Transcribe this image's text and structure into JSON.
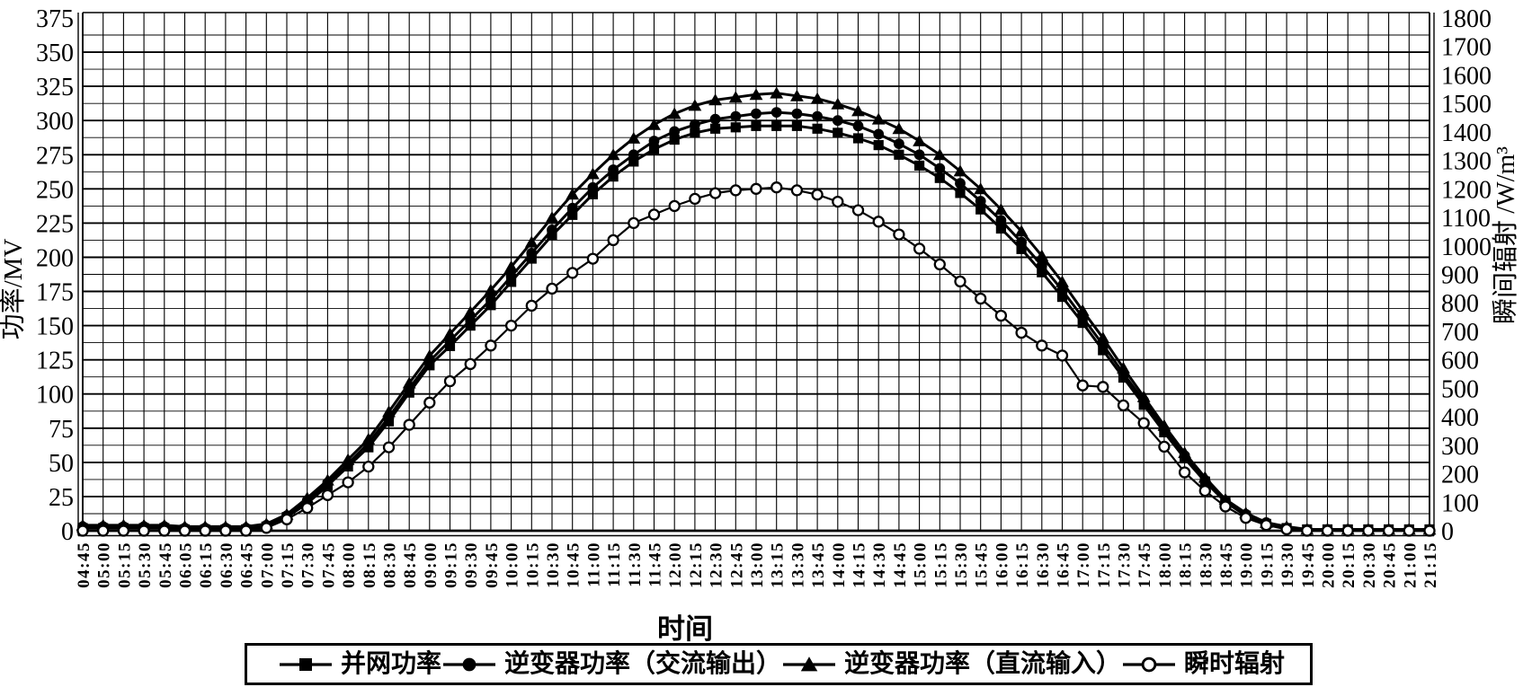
{
  "figure": {
    "background_color": "#ffffff",
    "ink_color": "#000000"
  },
  "chart_data": {
    "type": "line",
    "title": "",
    "legend_position": "bottom-center",
    "grid": {
      "vertical_per_tick": true,
      "horizontal_major_step": 25,
      "horizontal_minor_step": 12.5
    },
    "x_axis": {
      "title": "时间",
      "tick_labels": [
        "04:45",
        "05:00",
        "05:15",
        "05:30",
        "05:45",
        "06:05",
        "06:15",
        "06:30",
        "06:45",
        "07:00",
        "07:15",
        "07:30",
        "07:45",
        "08:00",
        "08:15",
        "08:30",
        "08:45",
        "09:00",
        "09:15",
        "09:30",
        "09:45",
        "10:00",
        "10:15",
        "10:30",
        "10:45",
        "11:00",
        "11:15",
        "11:30",
        "11:45",
        "12:00",
        "12:15",
        "12:30",
        "12:45",
        "13:00",
        "13:15",
        "13:30",
        "13:45",
        "14:00",
        "14:15",
        "14:30",
        "14:45",
        "15:00",
        "15:15",
        "15:30",
        "15:45",
        "16:00",
        "16:15",
        "16:30",
        "16:45",
        "17:00",
        "17:15",
        "17:30",
        "17:45",
        "18:00",
        "18:15",
        "18:30",
        "18:45",
        "19:00",
        "19:15",
        "19:30",
        "19:45",
        "20:00",
        "20:15",
        "20:30",
        "20:45",
        "21:00",
        "21:15"
      ]
    },
    "y_axis_left": {
      "title": "功率/MV",
      "min": 0,
      "max": 375,
      "tick_step": 25,
      "ticks": [
        0,
        25,
        50,
        75,
        100,
        125,
        150,
        175,
        200,
        225,
        250,
        275,
        300,
        325,
        350,
        375
      ]
    },
    "y_axis_right": {
      "title": "瞬间辐射 /W/m³",
      "min": 0,
      "max": 1800,
      "tick_step": 100,
      "ticks": [
        0,
        100,
        200,
        300,
        400,
        500,
        600,
        700,
        800,
        900,
        1000,
        1100,
        1200,
        1300,
        1400,
        1500,
        1600,
        1700,
        1800
      ]
    },
    "series": [
      {
        "id": "grid-power",
        "name": "并网功率",
        "marker": "filled-square",
        "axis": "left",
        "unit": "MV",
        "values": [
          2,
          2,
          2,
          2,
          2,
          1,
          1,
          1,
          1,
          3,
          10,
          20,
          33,
          47,
          61,
          80,
          101,
          121,
          135,
          150,
          165,
          182,
          199,
          216,
          231,
          246,
          259,
          270,
          279,
          286,
          291,
          294,
          295,
          296,
          296,
          296,
          294,
          291,
          287,
          282,
          275,
          267,
          258,
          247,
          235,
          221,
          206,
          189,
          171,
          152,
          132,
          112,
          92,
          72,
          53,
          36,
          21,
          11,
          5,
          2,
          1,
          1,
          1,
          1,
          1,
          1,
          1
        ]
      },
      {
        "id": "inverter-ac-output",
        "name": "逆变器功率（交流输出）",
        "marker": "filled-circle",
        "axis": "left",
        "unit": "MV",
        "values": [
          3,
          3,
          3,
          3,
          3,
          2,
          2,
          2,
          2,
          4,
          11,
          22,
          35,
          49,
          64,
          83,
          104,
          124,
          139,
          154,
          169,
          186,
          203,
          220,
          236,
          251,
          264,
          275,
          285,
          292,
          297,
          301,
          303,
          305,
          306,
          305,
          303,
          300,
          296,
          290,
          283,
          275,
          265,
          254,
          241,
          227,
          211,
          194,
          176,
          156,
          136,
          115,
          95,
          74,
          55,
          37,
          22,
          12,
          6,
          2,
          1,
          1,
          1,
          1,
          1,
          1,
          1
        ]
      },
      {
        "id": "inverter-dc-input",
        "name": "逆变器功率（直流输入）",
        "marker": "filled-triangle",
        "axis": "left",
        "unit": "MV",
        "values": [
          4,
          4,
          4,
          4,
          4,
          3,
          3,
          3,
          3,
          5,
          12,
          24,
          37,
          52,
          67,
          87,
          108,
          128,
          144,
          160,
          176,
          193,
          211,
          229,
          246,
          261,
          275,
          287,
          297,
          305,
          311,
          315,
          317,
          319,
          320,
          318,
          316,
          312,
          307,
          301,
          294,
          285,
          275,
          263,
          250,
          235,
          219,
          201,
          182,
          161,
          141,
          119,
          98,
          77,
          57,
          39,
          23,
          13,
          6,
          3,
          1,
          1,
          1,
          1,
          1,
          1,
          1
        ]
      },
      {
        "id": "instant-radiation",
        "name": "瞬时辐射",
        "marker": "open-circle",
        "axis": "right",
        "unit": "W/m³",
        "values": [
          0,
          0,
          0,
          0,
          0,
          0,
          0,
          0,
          0,
          10,
          40,
          80,
          125,
          170,
          225,
          293,
          372,
          450,
          525,
          585,
          650,
          720,
          790,
          850,
          905,
          955,
          1020,
          1080,
          1110,
          1140,
          1165,
          1185,
          1195,
          1200,
          1205,
          1195,
          1180,
          1155,
          1125,
          1085,
          1040,
          990,
          935,
          875,
          815,
          755,
          695,
          650,
          615,
          510,
          505,
          440,
          378,
          295,
          205,
          140,
          85,
          45,
          20,
          5,
          0,
          0,
          0,
          0,
          0,
          0,
          0
        ]
      }
    ]
  }
}
